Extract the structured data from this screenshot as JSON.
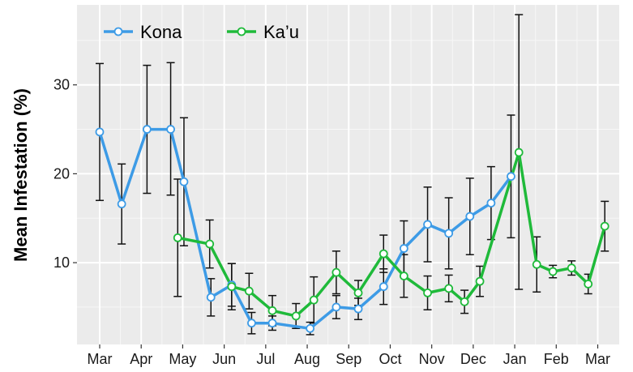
{
  "chart_data": {
    "type": "line",
    "ylabel": "Mean Infestation (%)",
    "xlabel": "",
    "x_ticks": [
      "Mar",
      "Apr",
      "May",
      "Jun",
      "Jul",
      "Aug",
      "Sep",
      "Oct",
      "Nov",
      "Dec",
      "Jan",
      "Feb",
      "Mar"
    ],
    "y_ticks": [
      10,
      20,
      30
    ],
    "ylim": [
      0.8,
      39
    ],
    "grid": true,
    "legend": "top-left",
    "series": [
      {
        "name": "Kona",
        "color": "#3d9be6",
        "points": [
          {
            "x": 0.0,
            "y": 24.7,
            "lo": 17.0,
            "hi": 32.4
          },
          {
            "x": 0.53,
            "y": 16.6,
            "lo": 12.1,
            "hi": 21.1
          },
          {
            "x": 1.14,
            "y": 25.0,
            "lo": 17.8,
            "hi": 32.2
          },
          {
            "x": 1.71,
            "y": 25.0,
            "lo": 17.6,
            "hi": 32.5
          },
          {
            "x": 2.03,
            "y": 19.1,
            "lo": 11.9,
            "hi": 26.3
          },
          {
            "x": 2.68,
            "y": 6.1,
            "lo": 4.0,
            "hi": 8.2
          },
          {
            "x": 3.18,
            "y": 7.5,
            "lo": 5.1,
            "hi": 9.9
          },
          {
            "x": 3.66,
            "y": 3.2,
            "lo": 2.0,
            "hi": 4.4
          },
          {
            "x": 4.16,
            "y": 3.2,
            "lo": 2.4,
            "hi": 4.0
          },
          {
            "x": 5.07,
            "y": 2.6,
            "lo": 1.9,
            "hi": 3.3
          },
          {
            "x": 5.7,
            "y": 5.0,
            "lo": 3.7,
            "hi": 6.3
          },
          {
            "x": 6.23,
            "y": 4.8,
            "lo": 3.6,
            "hi": 6.0
          },
          {
            "x": 6.84,
            "y": 7.3,
            "lo": 5.3,
            "hi": 9.3
          },
          {
            "x": 7.33,
            "y": 11.6,
            "lo": 8.5,
            "hi": 14.7
          },
          {
            "x": 7.9,
            "y": 14.3,
            "lo": 10.1,
            "hi": 18.5
          },
          {
            "x": 8.41,
            "y": 13.3,
            "lo": 9.3,
            "hi": 17.3
          },
          {
            "x": 8.92,
            "y": 15.2,
            "lo": 10.9,
            "hi": 19.5
          },
          {
            "x": 9.43,
            "y": 16.7,
            "lo": 12.6,
            "hi": 20.8
          },
          {
            "x": 9.91,
            "y": 19.7,
            "lo": 12.8,
            "hi": 26.6
          }
        ]
      },
      {
        "name": "Ka’u",
        "color": "#1fba3a",
        "points": [
          {
            "x": 1.88,
            "y": 12.8,
            "lo": 6.2,
            "hi": 19.4
          },
          {
            "x": 2.65,
            "y": 12.1,
            "lo": 9.4,
            "hi": 14.8
          },
          {
            "x": 3.18,
            "y": 7.3,
            "lo": 4.7,
            "hi": 9.9
          },
          {
            "x": 3.6,
            "y": 6.8,
            "lo": 4.8,
            "hi": 8.8
          },
          {
            "x": 4.16,
            "y": 4.6,
            "lo": 2.9,
            "hi": 6.3
          },
          {
            "x": 4.73,
            "y": 4.0,
            "lo": 2.6,
            "hi": 5.4
          },
          {
            "x": 5.16,
            "y": 5.8,
            "lo": 3.2,
            "hi": 8.4
          },
          {
            "x": 5.7,
            "y": 8.9,
            "lo": 6.5,
            "hi": 11.3
          },
          {
            "x": 6.23,
            "y": 6.6,
            "lo": 5.2,
            "hi": 8.0
          },
          {
            "x": 6.84,
            "y": 11.0,
            "lo": 8.9,
            "hi": 13.1
          },
          {
            "x": 7.33,
            "y": 8.5,
            "lo": 6.1,
            "hi": 10.9
          },
          {
            "x": 7.9,
            "y": 6.6,
            "lo": 4.7,
            "hi": 8.5
          },
          {
            "x": 8.41,
            "y": 7.1,
            "lo": 5.6,
            "hi": 8.6
          },
          {
            "x": 8.79,
            "y": 5.6,
            "lo": 4.3,
            "hi": 6.9
          },
          {
            "x": 9.16,
            "y": 7.9,
            "lo": 6.2,
            "hi": 9.6
          },
          {
            "x": 10.1,
            "y": 22.4,
            "lo": 7.0,
            "hi": 37.9
          },
          {
            "x": 10.53,
            "y": 9.8,
            "lo": 6.7,
            "hi": 12.9
          },
          {
            "x": 10.92,
            "y": 9.0,
            "lo": 8.3,
            "hi": 9.7
          },
          {
            "x": 11.37,
            "y": 9.4,
            "lo": 8.6,
            "hi": 10.2
          },
          {
            "x": 11.77,
            "y": 7.6,
            "lo": 6.5,
            "hi": 8.7
          },
          {
            "x": 12.17,
            "y": 14.1,
            "lo": 11.3,
            "hi": 16.9
          }
        ]
      }
    ]
  }
}
